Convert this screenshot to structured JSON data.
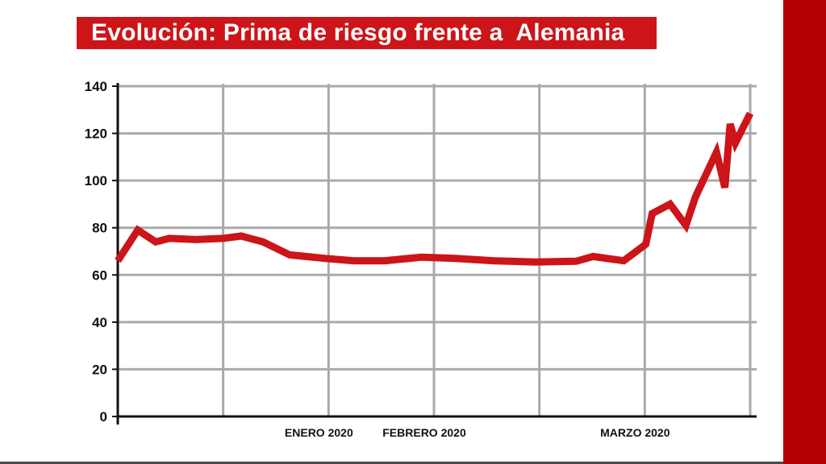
{
  "title": "Evolución: Prima de riesgo frente a  Alemania",
  "colors": {
    "title_bg": "#cc1419",
    "title_text": "#ffffff",
    "line": "#cc1419",
    "grid": "#aaaaaa",
    "axis": "#111111",
    "side_bar": "#b30000",
    "bottom_strip": "#4a4a4a"
  },
  "chart_data": {
    "type": "line",
    "title": "Evolución: Prima de riesgo frente a  Alemania",
    "xlabel": "",
    "ylabel": "",
    "ylim": [
      0,
      140
    ],
    "yticks": [
      0,
      20,
      40,
      60,
      80,
      100,
      120,
      140
    ],
    "xlim": [
      0,
      6
    ],
    "x_tick_labels": [
      {
        "x": 2,
        "label": "ENERO 2020"
      },
      {
        "x": 3,
        "label": "FEBRERO 2020"
      },
      {
        "x": 5,
        "label": "MARZO 2020"
      }
    ],
    "x_gridlines": [
      1,
      2,
      3,
      4,
      5,
      6
    ],
    "grid": true,
    "legend": "none",
    "series": [
      {
        "points": [
          [
            0.0,
            66
          ],
          [
            0.19,
            79
          ],
          [
            0.36,
            74
          ],
          [
            0.49,
            75.5
          ],
          [
            0.74,
            75
          ],
          [
            1.0,
            75.5
          ],
          [
            1.17,
            76.5
          ],
          [
            1.38,
            74
          ],
          [
            1.63,
            68.5
          ],
          [
            1.97,
            67
          ],
          [
            2.24,
            66
          ],
          [
            2.53,
            66
          ],
          [
            2.88,
            67.5
          ],
          [
            3.2,
            67
          ],
          [
            3.57,
            66
          ],
          [
            3.96,
            65.5
          ],
          [
            4.35,
            65.8
          ],
          [
            4.51,
            67.8
          ],
          [
            4.8,
            66
          ],
          [
            5.01,
            73
          ],
          [
            5.07,
            86
          ],
          [
            5.24,
            90
          ],
          [
            5.39,
            81
          ],
          [
            5.48,
            93
          ],
          [
            5.68,
            112
          ],
          [
            5.76,
            97
          ],
          [
            5.81,
            124
          ],
          [
            5.86,
            116
          ],
          [
            6.0,
            128.5
          ]
        ]
      }
    ]
  }
}
